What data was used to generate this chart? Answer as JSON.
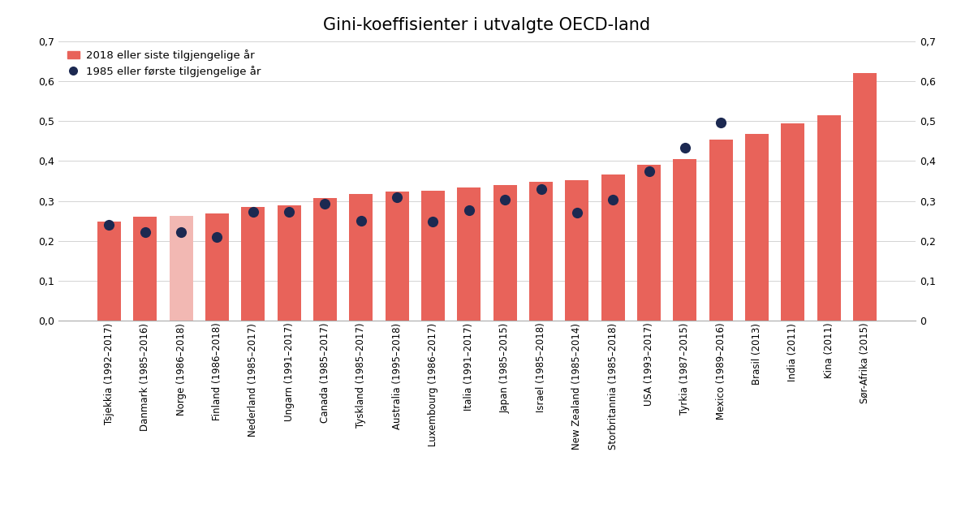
{
  "title": "Gini-koeffisienter i utvalgte OECD-land",
  "legend_bar": "2018 eller siste tilgjengelige år",
  "legend_dot": "1985 eller første tilgjengelige år",
  "categories": [
    "Tsjekkia (1992–2017)",
    "Danmark (1985–2016)",
    "Norge (1986–2018)",
    "Finland (1986–2018)",
    "Nederland (1985–2017)",
    "Ungarn (1991–2017)",
    "Canada (1985–2017)",
    "Tyskland (1985–2017)",
    "Australia (1995–2018)",
    "Luxembourg (1986–2017)",
    "Italia (1991–2017)",
    "Japan (1985–2015)",
    "Israel (1985–2018)",
    "New Zealand (1985–2014)",
    "Storbritannia (1985–2018)",
    "USA (1993–2017)",
    "Tyrkia (1987–2015)",
    "Mexico (1989–2016)",
    "Brasil (2013)",
    "India (2011)",
    "Kina (2011)",
    "Sør-Afrika (2015)"
  ],
  "bar_values": [
    0.248,
    0.261,
    0.262,
    0.269,
    0.285,
    0.289,
    0.307,
    0.317,
    0.323,
    0.326,
    0.334,
    0.339,
    0.348,
    0.352,
    0.366,
    0.39,
    0.404,
    0.454,
    0.467,
    0.495,
    0.514,
    0.62
  ],
  "dot_values": [
    0.241,
    0.221,
    0.222,
    0.209,
    0.272,
    0.272,
    0.293,
    0.251,
    0.309,
    0.248,
    0.277,
    0.304,
    0.329,
    0.271,
    0.303,
    0.374,
    0.434,
    0.496,
    null,
    null,
    null,
    null
  ],
  "bar_colors": [
    "#E8635A",
    "#E8635A",
    "#F2B8B3",
    "#E8635A",
    "#E8635A",
    "#E8635A",
    "#E8635A",
    "#E8635A",
    "#E8635A",
    "#E8635A",
    "#E8635A",
    "#E8635A",
    "#E8635A",
    "#E8635A",
    "#E8635A",
    "#E8635A",
    "#E8635A",
    "#E8635A",
    "#E8635A",
    "#E8635A",
    "#E8635A",
    "#E8635A"
  ],
  "dot_color": "#1C2951",
  "ylim": [
    0,
    0.7
  ],
  "yticks": [
    0.0,
    0.1,
    0.2,
    0.3,
    0.4,
    0.5,
    0.6,
    0.7
  ],
  "ytick_labels_left": [
    "0,0",
    "0,1",
    "0,2",
    "0,3",
    "0,4",
    "0,5",
    "0,6",
    "0,7"
  ],
  "ytick_labels_right": [
    "0",
    "0,1",
    "0,2",
    "0,3",
    "0,4",
    "0,5",
    "0,6",
    "0,7"
  ],
  "background_color": "#ffffff",
  "bar_width": 0.65,
  "title_fontsize": 15,
  "tick_fontsize": 9,
  "label_fontsize": 8.5,
  "legend_fontsize": 9.5,
  "dot_size": 90
}
